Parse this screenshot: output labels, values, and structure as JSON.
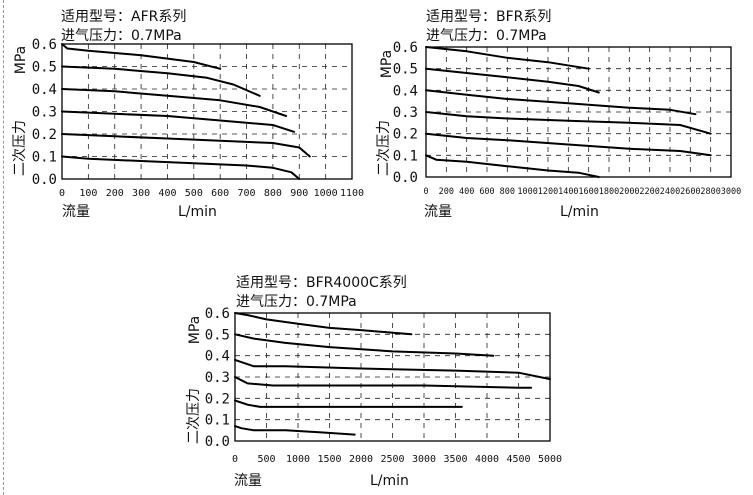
{
  "chart_data": [
    {
      "type": "line",
      "model_label": "适用型号：AFR系列",
      "inlet_label": "进气压力：0.7MPa",
      "ylabel_unit": "MPa",
      "ylabel_text": "二次压力",
      "xlabel_left": "流量",
      "xlabel_unit": "L/min",
      "xlim": [
        0,
        1100
      ],
      "ylim": [
        0,
        0.6
      ],
      "x_ticks": [
        "0",
        "100",
        "200",
        "300",
        "400",
        "500",
        "600",
        "700",
        "800",
        "900",
        "1000",
        "1100"
      ],
      "y_ticks": [
        "0.0",
        "0.1",
        "0.2",
        "0.3",
        "0.4",
        "0.5",
        "0.6"
      ],
      "grid": true,
      "series": [
        {
          "points": [
            [
              0,
              0.1
            ],
            [
              100,
              0.09
            ],
            [
              300,
              0.08
            ],
            [
              500,
              0.07
            ],
            [
              700,
              0.06
            ],
            [
              800,
              0.05
            ],
            [
              870,
              0.03
            ],
            [
              900,
              0.0
            ]
          ]
        },
        {
          "points": [
            [
              0,
              0.2
            ],
            [
              200,
              0.19
            ],
            [
              400,
              0.18
            ],
            [
              600,
              0.17
            ],
            [
              800,
              0.16
            ],
            [
              900,
              0.14
            ],
            [
              940,
              0.1
            ]
          ]
        },
        {
          "points": [
            [
              0,
              0.3
            ],
            [
              200,
              0.29
            ],
            [
              400,
              0.28
            ],
            [
              600,
              0.26
            ],
            [
              800,
              0.24
            ],
            [
              880,
              0.21
            ]
          ]
        },
        {
          "points": [
            [
              0,
              0.4
            ],
            [
              200,
              0.39
            ],
            [
              400,
              0.37
            ],
            [
              600,
              0.35
            ],
            [
              750,
              0.32
            ],
            [
              850,
              0.28
            ]
          ]
        },
        {
          "points": [
            [
              0,
              0.5
            ],
            [
              200,
              0.49
            ],
            [
              400,
              0.47
            ],
            [
              550,
              0.45
            ],
            [
              650,
              0.42
            ],
            [
              750,
              0.37
            ]
          ]
        },
        {
          "points": [
            [
              0,
              0.6
            ],
            [
              20,
              0.58
            ],
            [
              100,
              0.57
            ],
            [
              300,
              0.55
            ],
            [
              500,
              0.52
            ],
            [
              600,
              0.49
            ]
          ]
        }
      ]
    },
    {
      "type": "line",
      "model_label": "适用型号：BFR系列",
      "inlet_label": "进气压力：0.7MPa",
      "ylabel_unit": "MPa",
      "ylabel_text": "二次压力",
      "xlabel_left": "流量",
      "xlabel_unit": "L/min",
      "xlim": [
        0,
        3000
      ],
      "ylim": [
        0,
        0.6
      ],
      "x_ticks": [
        "0",
        "200",
        "400",
        "600",
        "800",
        "1000",
        "1200",
        "1400",
        "1600",
        "1800",
        "2000",
        "2200",
        "2400",
        "2600",
        "2800",
        "3000"
      ],
      "y_ticks": [
        "0.0",
        "0.1",
        "0.2",
        "0.3",
        "0.4",
        "0.5",
        "0.6"
      ],
      "grid": true,
      "series": [
        {
          "points": [
            [
              0,
              0.1
            ],
            [
              100,
              0.08
            ],
            [
              400,
              0.07
            ],
            [
              800,
              0.05
            ],
            [
              1200,
              0.03
            ],
            [
              1500,
              0.02
            ],
            [
              1700,
              0.0
            ]
          ]
        },
        {
          "points": [
            [
              0,
              0.2
            ],
            [
              400,
              0.18
            ],
            [
              800,
              0.17
            ],
            [
              1400,
              0.15
            ],
            [
              2000,
              0.13
            ],
            [
              2500,
              0.12
            ],
            [
              2800,
              0.1
            ]
          ]
        },
        {
          "points": [
            [
              0,
              0.3
            ],
            [
              400,
              0.28
            ],
            [
              800,
              0.27
            ],
            [
              1400,
              0.26
            ],
            [
              2000,
              0.25
            ],
            [
              2500,
              0.24
            ],
            [
              2800,
              0.2
            ]
          ]
        },
        {
          "points": [
            [
              0,
              0.4
            ],
            [
              400,
              0.38
            ],
            [
              800,
              0.36
            ],
            [
              1400,
              0.34
            ],
            [
              2000,
              0.32
            ],
            [
              2400,
              0.31
            ],
            [
              2650,
              0.29
            ]
          ]
        },
        {
          "points": [
            [
              0,
              0.5
            ],
            [
              400,
              0.48
            ],
            [
              800,
              0.46
            ],
            [
              1200,
              0.44
            ],
            [
              1500,
              0.42
            ],
            [
              1700,
              0.39
            ]
          ]
        },
        {
          "points": [
            [
              0,
              0.6
            ],
            [
              400,
              0.58
            ],
            [
              800,
              0.55
            ],
            [
              1200,
              0.53
            ],
            [
              1600,
              0.5
            ]
          ]
        }
      ]
    },
    {
      "type": "line",
      "model_label": "适用型号：BFR4000C系列",
      "inlet_label": "进气压力：0.7MPa",
      "ylabel_unit": "MPa",
      "ylabel_text": "二次压力",
      "xlabel_left": "流量",
      "xlabel_unit": "L/min",
      "xlim": [
        0,
        5000
      ],
      "ylim": [
        0,
        0.6
      ],
      "x_ticks": [
        "0",
        "500",
        "1000",
        "1500",
        "2000",
        "2500",
        "3000",
        "3500",
        "4000",
        "4500",
        "5000"
      ],
      "y_ticks": [
        "0.0",
        "0.1",
        "0.2",
        "0.3",
        "0.4",
        "0.5",
        "0.6"
      ],
      "grid": true,
      "series": [
        {
          "points": [
            [
              0,
              0.07
            ],
            [
              100,
              0.06
            ],
            [
              300,
              0.05
            ],
            [
              800,
              0.05
            ],
            [
              1400,
              0.04
            ],
            [
              1900,
              0.03
            ]
          ]
        },
        {
          "points": [
            [
              0,
              0.19
            ],
            [
              200,
              0.17
            ],
            [
              400,
              0.16
            ],
            [
              1000,
              0.16
            ],
            [
              2000,
              0.16
            ],
            [
              3000,
              0.16
            ],
            [
              3600,
              0.16
            ]
          ]
        },
        {
          "points": [
            [
              0,
              0.3
            ],
            [
              200,
              0.27
            ],
            [
              600,
              0.26
            ],
            [
              1500,
              0.26
            ],
            [
              3000,
              0.26
            ],
            [
              4500,
              0.25
            ],
            [
              4700,
              0.25
            ]
          ]
        },
        {
          "points": [
            [
              0,
              0.38
            ],
            [
              300,
              0.35
            ],
            [
              800,
              0.35
            ],
            [
              2000,
              0.34
            ],
            [
              3500,
              0.33
            ],
            [
              4500,
              0.32
            ],
            [
              5000,
              0.29
            ]
          ]
        },
        {
          "points": [
            [
              0,
              0.5
            ],
            [
              300,
              0.48
            ],
            [
              800,
              0.46
            ],
            [
              1500,
              0.44
            ],
            [
              2500,
              0.42
            ],
            [
              3500,
              0.41
            ],
            [
              4100,
              0.4
            ]
          ]
        },
        {
          "points": [
            [
              0,
              0.6
            ],
            [
              200,
              0.59
            ],
            [
              500,
              0.57
            ],
            [
              1000,
              0.55
            ],
            [
              1500,
              0.53
            ],
            [
              2000,
              0.52
            ],
            [
              2800,
              0.5
            ]
          ]
        }
      ]
    }
  ]
}
